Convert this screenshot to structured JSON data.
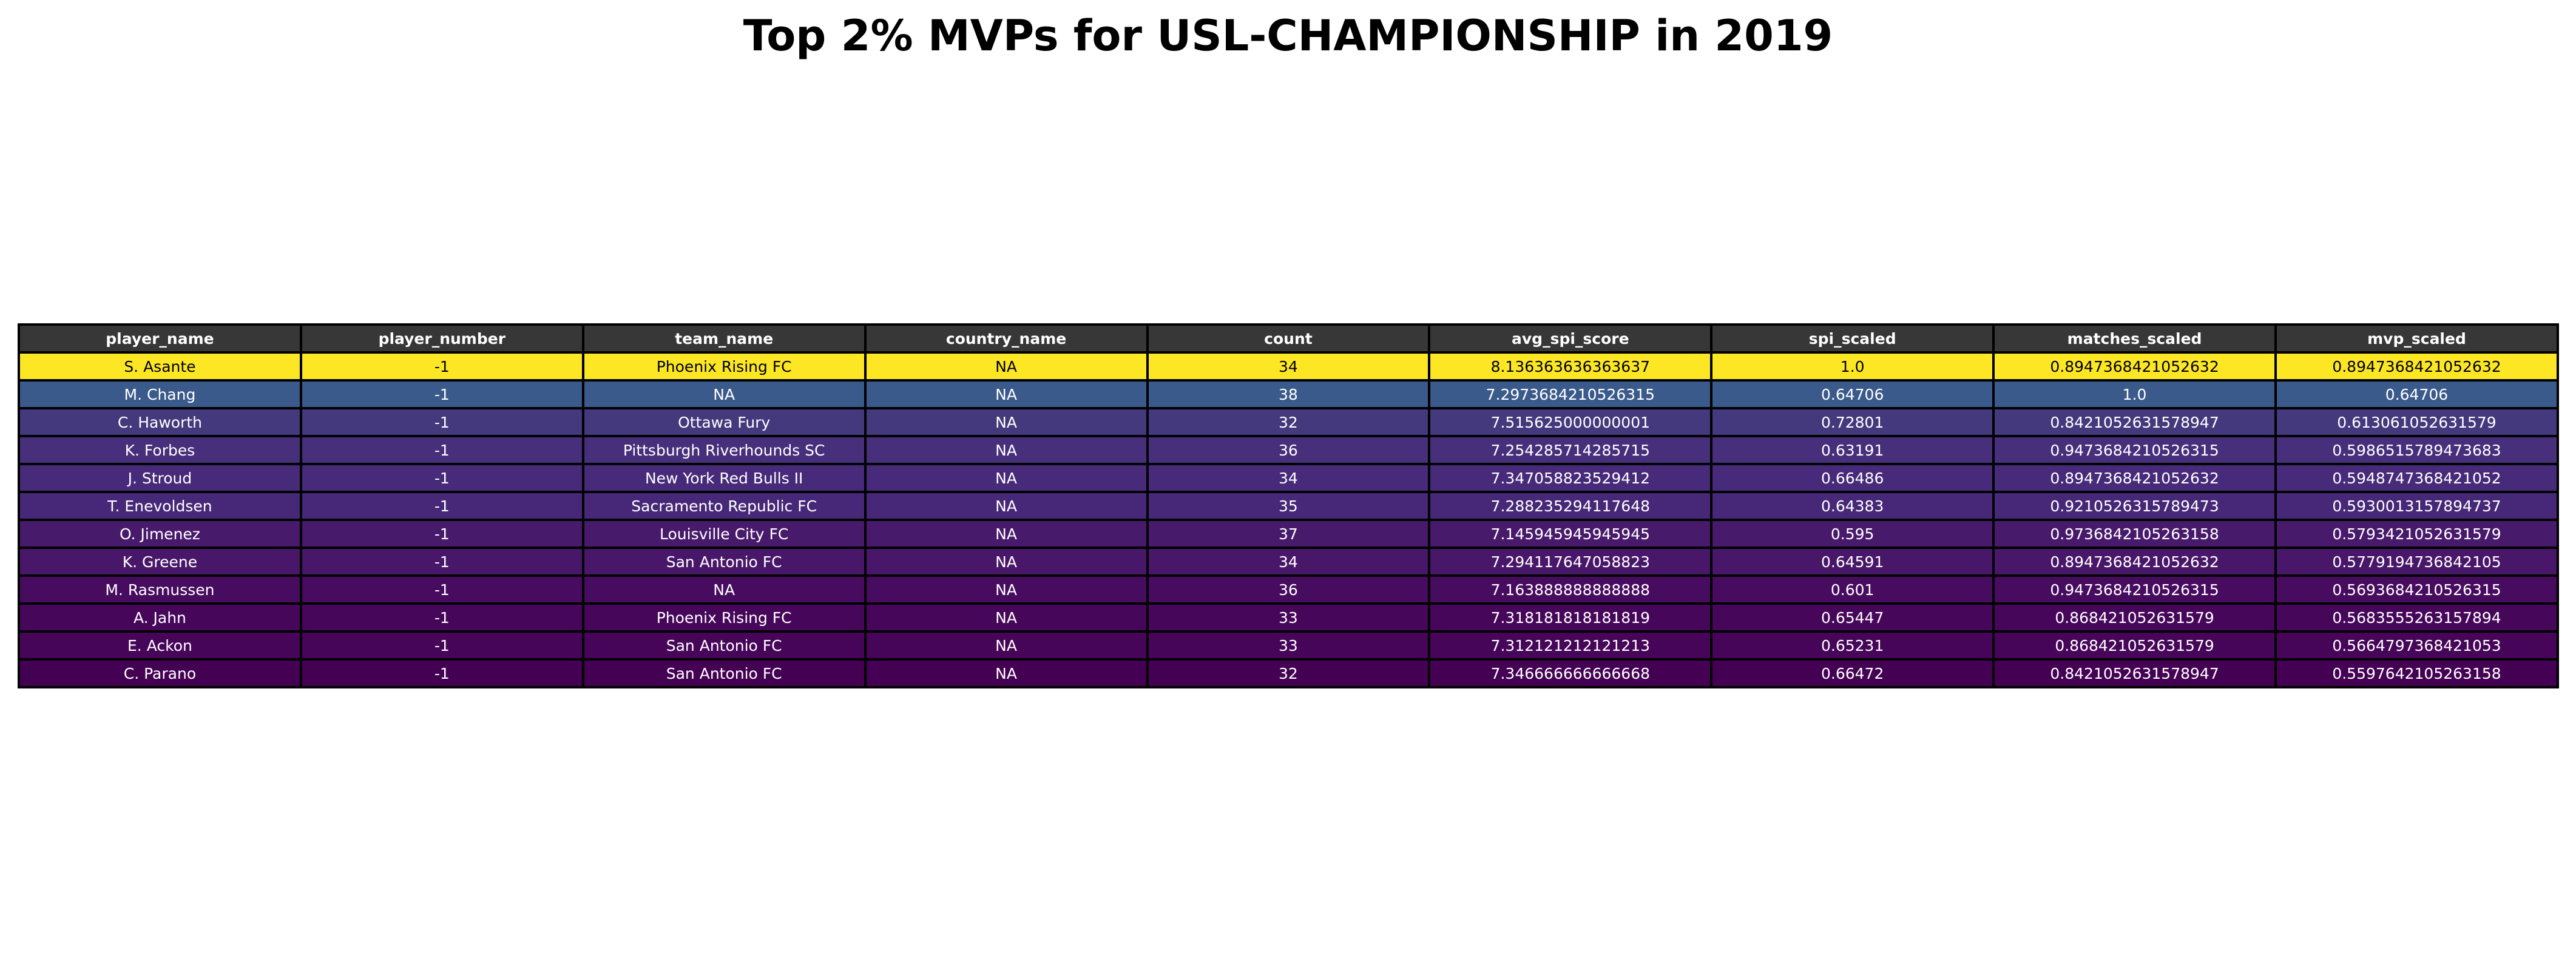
{
  "chart_data": {
    "type": "table",
    "title": "Top 2% MVPs for USL-CHAMPIONSHIP in 2019",
    "header_color": "#373737",
    "text_color_light": "#ffffff",
    "text_color_dark": "#000000",
    "row_colormap": "viridis",
    "columns": [
      "player_name",
      "player_number",
      "team_name",
      "country_name",
      "count",
      "avg_spi_score",
      "spi_scaled",
      "matches_scaled",
      "mvp_scaled"
    ],
    "rows": [
      {
        "color": "#fde725",
        "cells": [
          "S. Asante",
          "-1",
          "Phoenix Rising FC",
          "NA",
          "34",
          "8.136363636363637",
          "1.0",
          "0.8947368421052632",
          "0.8947368421052632"
        ]
      },
      {
        "color": "#3b5a8c",
        "cells": [
          "M. Chang",
          "-1",
          "NA",
          "NA",
          "38",
          "7.2973684210526315",
          "0.64706",
          "1.0",
          "0.64706"
        ]
      },
      {
        "color": "#45397d",
        "cells": [
          "C. Haworth",
          "-1",
          "Ottawa Fury",
          "NA",
          "32",
          "7.515625000000001",
          "0.72801",
          "0.8421052631578947",
          "0.613061052631579"
        ]
      },
      {
        "color": "#472f7c",
        "cells": [
          "K. Forbes",
          "-1",
          "Pittsburgh Riverhounds SC",
          "NA",
          "36",
          "7.254285714285715",
          "0.63191",
          "0.9473684210526315",
          "0.5986515789473683"
        ]
      },
      {
        "color": "#472a7a",
        "cells": [
          "J. Stroud",
          "-1",
          "New York Red Bulls II",
          "NA",
          "34",
          "7.347058823529412",
          "0.66486",
          "0.8947368421052632",
          "0.5948747368421052"
        ]
      },
      {
        "color": "#472878",
        "cells": [
          "T. Enevoldsen",
          "-1",
          "Sacramento Republic FC",
          "NA",
          "35",
          "7.288235294117648",
          "0.64383",
          "0.9210526315789473",
          "0.5930013157894737"
        ]
      },
      {
        "color": "#481a6c",
        "cells": [
          "O. Jimenez",
          "-1",
          "Louisville City FC",
          "NA",
          "37",
          "7.145945945945945",
          "0.595",
          "0.9736842105263158",
          "0.5793421052631579"
        ]
      },
      {
        "color": "#481769",
        "cells": [
          "K. Greene",
          "-1",
          "San Antonio FC",
          "NA",
          "34",
          "7.294117647058823",
          "0.64591",
          "0.8947368421052632",
          "0.5779194736842105"
        ]
      },
      {
        "color": "#470c5f",
        "cells": [
          "M. Rasmussen",
          "-1",
          "NA",
          "NA",
          "36",
          "7.163888888888888",
          "0.601",
          "0.9473684210526315",
          "0.5693684210526315"
        ]
      },
      {
        "color": "#46075a",
        "cells": [
          "A. Jahn",
          "-1",
          "Phoenix Rising FC",
          "NA",
          "33",
          "7.318181818181819",
          "0.65447",
          "0.868421052631579",
          "0.5683555263157894"
        ]
      },
      {
        "color": "#460559",
        "cells": [
          "E. Ackon",
          "-1",
          "San Antonio FC",
          "NA",
          "33",
          "7.312121212121213",
          "0.65231",
          "0.868421052631579",
          "0.5664797368421053"
        ]
      },
      {
        "color": "#440154",
        "cells": [
          "C. Parano",
          "-1",
          "San Antonio FC",
          "NA",
          "32",
          "7.346666666666668",
          "0.66472",
          "0.8421052631578947",
          "0.5597642105263158"
        ]
      }
    ]
  }
}
